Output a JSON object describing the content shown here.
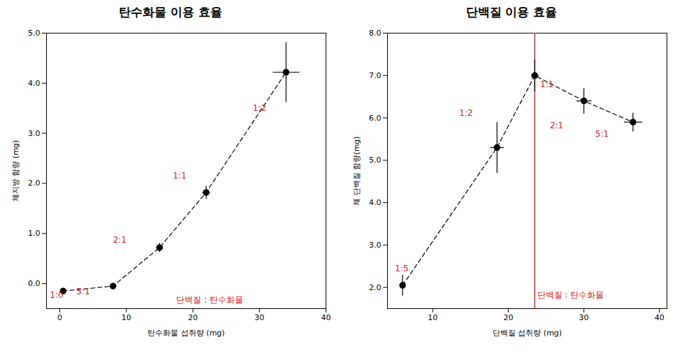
{
  "chart_data": [
    {
      "type": "scatter",
      "title": "탄수화물 이용 효율",
      "xlabel": "탄수화물 섭취량 (mg)",
      "ylabel": "체지방 함량 (mg)",
      "xlim": [
        -2,
        40
      ],
      "ylim": [
        -0.5,
        5
      ],
      "xticks": [
        0,
        10,
        20,
        30,
        40
      ],
      "yticks": [
        0,
        1,
        2,
        3,
        4,
        5
      ],
      "x": [
        0.5,
        8.0,
        15.0,
        22.0,
        34.0
      ],
      "values": [
        -0.15,
        -0.05,
        0.72,
        1.82,
        4.22
      ],
      "xerr": [
        0.3,
        0.5,
        0.5,
        0.6,
        2.0
      ],
      "yerr": [
        0.06,
        0.06,
        0.09,
        0.13,
        0.6
      ],
      "color": "black",
      "marker": "circle",
      "line_style": "dashed",
      "grid": false,
      "annotations": [
        {
          "text": "1:0",
          "x": -1.5,
          "y": -0.28,
          "color": "#CC2222"
        },
        {
          "text": "5:1",
          "x": 2.5,
          "y": -0.22,
          "color": "#CC2222"
        },
        {
          "text": "2:1",
          "x": 8.0,
          "y": 0.82,
          "color": "#CC2222"
        },
        {
          "text": "1:1",
          "x": 17.0,
          "y": 2.1,
          "color": "#CC2222"
        },
        {
          "text": "1:2",
          "x": 29.0,
          "y": 3.45,
          "color": "#CC2222"
        },
        {
          "text": "단백질 : 탄수화물",
          "x": 17.5,
          "y": -0.38,
          "color": "#CC2222"
        }
      ]
    },
    {
      "type": "scatter",
      "title": "단백질 이용 효율",
      "xlabel": "단백질 섭취량 (mg)",
      "ylabel": "체 단백질 함량(mg)",
      "xlim": [
        4,
        41
      ],
      "ylim": [
        1.5,
        8
      ],
      "xticks": [
        10,
        20,
        30,
        40
      ],
      "yticks": [
        2,
        3,
        4,
        5,
        6,
        7,
        8
      ],
      "x": [
        6.0,
        18.5,
        23.5,
        30.0,
        36.5
      ],
      "values": [
        2.05,
        5.3,
        7.0,
        6.4,
        5.9
      ],
      "xerr": [
        0.3,
        0.9,
        0.5,
        1.0,
        1.2
      ],
      "yerr": [
        0.25,
        0.6,
        0.38,
        0.3,
        0.22
      ],
      "color": "black",
      "marker": "circle",
      "line_style": "dashed",
      "grid": false,
      "vline": {
        "x": 23.5,
        "color": "#CC3333"
      },
      "annotations": [
        {
          "text": "1:5",
          "x": 5.0,
          "y": 2.38,
          "color": "#CC2222"
        },
        {
          "text": "1:2",
          "x": 13.5,
          "y": 6.05,
          "color": "#CC2222"
        },
        {
          "text": "1:1",
          "x": 24.2,
          "y": 6.72,
          "color": "#CC2222"
        },
        {
          "text": "2:1",
          "x": 25.5,
          "y": 5.75,
          "color": "#CC2222"
        },
        {
          "text": "5:1",
          "x": 31.5,
          "y": 5.55,
          "color": "#CC2222"
        },
        {
          "text": "단백질 : 탄수화물",
          "x": 23.8,
          "y": 1.75,
          "color": "#CC2222"
        }
      ]
    }
  ]
}
